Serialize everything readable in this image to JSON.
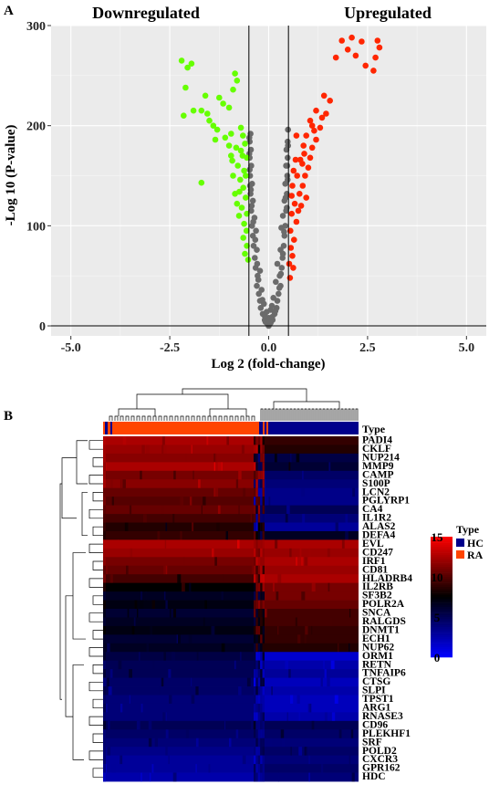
{
  "panel_a": {
    "label": "A"
  },
  "panel_b": {
    "label": "B"
  },
  "chart_data": [
    {
      "type": "scatter",
      "title": "",
      "annotations": [
        "Downregulated",
        "Upregulated"
      ],
      "xlabel": "Log 2 (fold-change)",
      "ylabel": "-Log 10 (P-value)",
      "xlim": [
        -5.5,
        5.5
      ],
      "ylim": [
        -10,
        300
      ],
      "x_ticks": [
        "-5.0",
        "-2.5",
        "0.0",
        "2.5",
        "5.0"
      ],
      "y_ticks": [
        "0",
        "100",
        "200",
        "300"
      ],
      "x_tick_values": [
        -5,
        -2.5,
        0,
        2.5,
        5
      ],
      "y_tick_values": [
        0,
        100,
        200,
        300
      ],
      "threshold_lines_x": [
        -0.5,
        0.5
      ],
      "hline_y": 0,
      "grid": true,
      "colors": {
        "down": "#66ff00",
        "up": "#ff2600",
        "ns": "#6b6b6b",
        "panel_bg": "#ebebeb"
      },
      "series": [
        {
          "key": "down",
          "points": [
            [
              -2.2,
              265
            ],
            [
              -2.05,
              258
            ],
            [
              -1.95,
              262
            ],
            [
              -2.1,
              238
            ],
            [
              -1.6,
              230
            ],
            [
              -1.9,
              215
            ],
            [
              -2.15,
              210
            ],
            [
              -1.7,
              215
            ],
            [
              -1.25,
              228
            ],
            [
              -1.15,
              222
            ],
            [
              -1.0,
              218
            ],
            [
              -0.85,
              252
            ],
            [
              -0.8,
              245
            ],
            [
              -0.9,
              236
            ],
            [
              -1.5,
              205
            ],
            [
              -1.4,
              200
            ],
            [
              -1.3,
              196
            ],
            [
              -1.55,
              212
            ],
            [
              -1.35,
              186
            ],
            [
              -1.1,
              188
            ],
            [
              -0.95,
              192
            ],
            [
              -0.65,
              190
            ],
            [
              -1.0,
              180
            ],
            [
              -0.82,
              178
            ],
            [
              -1.7,
              143
            ],
            [
              -0.92,
              165
            ],
            [
              -0.78,
              160
            ],
            [
              -0.7,
              175
            ],
            [
              -0.62,
              155
            ],
            [
              -0.72,
              146
            ],
            [
              -0.64,
              138
            ],
            [
              -0.85,
              132
            ],
            [
              -0.58,
              128
            ],
            [
              -0.68,
              118
            ],
            [
              -0.55,
              112
            ],
            [
              -0.62,
              102
            ],
            [
              -0.56,
              95
            ],
            [
              -0.64,
              88
            ],
            [
              -0.55,
              80
            ],
            [
              -0.6,
              72
            ],
            [
              -0.52,
              66
            ],
            [
              -0.75,
              110
            ],
            [
              -0.8,
              122
            ],
            [
              -0.9,
              150
            ],
            [
              -0.95,
              170
            ],
            [
              -0.6,
              182
            ],
            [
              -0.7,
              198
            ],
            [
              -0.55,
              168
            ],
            [
              -0.58,
              150
            ],
            [
              -0.66,
              170
            ],
            [
              -0.74,
              134
            ]
          ]
        },
        {
          "key": "up",
          "points": [
            [
              2.1,
              288
            ],
            [
              1.85,
              285
            ],
            [
              2.35,
              284
            ],
            [
              2.75,
              285
            ],
            [
              2.8,
              278
            ],
            [
              2.7,
              268
            ],
            [
              2.65,
              255
            ],
            [
              2.45,
              260
            ],
            [
              2.0,
              276
            ],
            [
              1.7,
              268
            ],
            [
              2.2,
              270
            ],
            [
              1.55,
              225
            ],
            [
              1.45,
              212
            ],
            [
              1.35,
              208
            ],
            [
              1.2,
              215
            ],
            [
              1.3,
              198
            ],
            [
              1.1,
              200
            ],
            [
              1.05,
              205
            ],
            [
              0.95,
              190
            ],
            [
              1.2,
              186
            ],
            [
              1.1,
              178
            ],
            [
              0.9,
              172
            ],
            [
              0.85,
              162
            ],
            [
              0.8,
              166
            ],
            [
              1.0,
              158
            ],
            [
              0.92,
              150
            ],
            [
              0.68,
              166
            ],
            [
              0.72,
              150
            ],
            [
              0.6,
              140
            ],
            [
              0.78,
              132
            ],
            [
              0.66,
              122
            ],
            [
              0.58,
              112
            ],
            [
              0.7,
              104
            ],
            [
              0.55,
              95
            ],
            [
              0.64,
              86
            ],
            [
              0.56,
              78
            ],
            [
              0.6,
              70
            ],
            [
              0.52,
              62
            ],
            [
              0.75,
              115
            ],
            [
              0.86,
              140
            ],
            [
              0.95,
              128
            ],
            [
              1.05,
              168
            ],
            [
              0.63,
              155
            ],
            [
              0.88,
              180
            ],
            [
              0.7,
              190
            ],
            [
              0.58,
              130
            ],
            [
              0.82,
              120
            ],
            [
              0.54,
              48
            ],
            [
              0.62,
              58
            ],
            [
              1.4,
              230
            ],
            [
              1.15,
              195
            ]
          ]
        },
        {
          "key": "ns",
          "points": [
            [
              0.0,
              0
            ],
            [
              -0.05,
              3
            ],
            [
              0.05,
              3
            ],
            [
              -0.1,
              6
            ],
            [
              0.1,
              6
            ],
            [
              0.0,
              8
            ],
            [
              -0.15,
              12
            ],
            [
              0.15,
              12
            ],
            [
              -0.2,
              18
            ],
            [
              0.2,
              18
            ],
            [
              -0.05,
              14
            ],
            [
              0.05,
              16
            ],
            [
              -0.22,
              25
            ],
            [
              0.22,
              25
            ],
            [
              -0.12,
              22
            ],
            [
              0.12,
              28
            ],
            [
              -0.25,
              32
            ],
            [
              0.25,
              32
            ],
            [
              -0.3,
              40
            ],
            [
              0.3,
              40
            ],
            [
              -0.18,
              36
            ],
            [
              0.18,
              44
            ],
            [
              -0.28,
              50
            ],
            [
              0.28,
              50
            ],
            [
              -0.33,
              58
            ],
            [
              0.33,
              58
            ],
            [
              -0.22,
              55
            ],
            [
              0.22,
              62
            ],
            [
              -0.35,
              68
            ],
            [
              0.35,
              68
            ],
            [
              -0.3,
              76
            ],
            [
              0.3,
              76
            ],
            [
              -0.38,
              80
            ],
            [
              0.38,
              80
            ],
            [
              -0.4,
              90
            ],
            [
              0.4,
              90
            ],
            [
              -0.32,
              95
            ],
            [
              0.32,
              98
            ],
            [
              -0.42,
              100
            ],
            [
              0.42,
              100
            ],
            [
              -0.36,
              108
            ],
            [
              0.36,
              110
            ],
            [
              -0.44,
              115
            ],
            [
              0.44,
              115
            ],
            [
              -0.4,
              125
            ],
            [
              0.4,
              125
            ],
            [
              -0.46,
              132
            ],
            [
              0.46,
              132
            ],
            [
              -0.42,
              142
            ],
            [
              0.42,
              142
            ],
            [
              -0.47,
              150
            ],
            [
              0.47,
              150
            ],
            [
              -0.44,
              160
            ],
            [
              0.44,
              160
            ],
            [
              -0.48,
              168
            ],
            [
              0.48,
              168
            ],
            [
              -0.45,
              176
            ],
            [
              0.45,
              176
            ],
            [
              -0.48,
              184
            ],
            [
              0.48,
              184
            ],
            [
              -0.46,
              192
            ],
            [
              -0.1,
              10
            ],
            [
              0.08,
              20
            ],
            [
              -0.26,
              46
            ],
            [
              0.27,
              38
            ],
            [
              -0.34,
              86
            ],
            [
              0.36,
              72
            ],
            [
              -0.43,
              120
            ],
            [
              0.43,
              128
            ],
            [
              -0.47,
              140
            ],
            [
              0.47,
              160
            ],
            [
              -0.49,
              172
            ],
            [
              0.49,
              180
            ],
            [
              -0.02,
              5
            ],
            [
              0.02,
              2
            ],
            [
              -0.08,
              4
            ],
            [
              0.09,
              9
            ],
            [
              -0.16,
              26
            ],
            [
              0.17,
              15
            ],
            [
              -0.29,
              62
            ],
            [
              0.31,
              52
            ],
            [
              -0.39,
              104
            ],
            [
              0.39,
              94
            ],
            [
              -0.45,
              136
            ],
            [
              0.46,
              118
            ],
            [
              -0.48,
              156
            ],
            [
              0.48,
              146
            ],
            [
              -0.49,
              188
            ],
            [
              0.49,
              196
            ]
          ]
        }
      ]
    },
    {
      "type": "heatmap",
      "title": "",
      "annotation_label": "Type",
      "legend_title": "Type",
      "legend_entries": [
        {
          "name": "HC",
          "color": "#00008b"
        },
        {
          "name": "RA",
          "color": "#ff4500"
        }
      ],
      "colorbar": {
        "min": 0,
        "max": 15,
        "ticks": [
          "15",
          "10",
          "5",
          "0"
        ],
        "tick_values": [
          15,
          10,
          5,
          0
        ],
        "colors": [
          "#ff0000",
          "#000000",
          "#0000ff"
        ]
      },
      "rows": [
        "PADI4",
        "CKLF",
        "NUP214",
        "MMP9",
        "CAMP",
        "S100P",
        "LCN2",
        "PGLYRP1",
        "CA4",
        "IL1R2",
        "ALAS2",
        "DEFA4",
        "EVL",
        "CD247",
        "IRF1",
        "CD81",
        "HLADRB4",
        "IL2RB",
        "SF3B2",
        "POLR2A",
        "SNCA",
        "RALGDS",
        "DNMT1",
        "ECH1",
        "NUP62",
        "ORM1",
        "RETN",
        "TNFAIP6",
        "CTSG",
        "SLPI",
        "TPST1",
        "ARG1",
        "RNASE3",
        "CD96",
        "PLEKHF1",
        "SRF",
        "POLD2",
        "CXCR3",
        "GPR162",
        "HDC"
      ],
      "columns": [
        "RA",
        "HC"
      ],
      "values": [
        [
          12.5,
          9.0
        ],
        [
          12.0,
          8.5
        ],
        [
          11.5,
          5.5
        ],
        [
          12.5,
          6.0
        ],
        [
          11.0,
          4.5
        ],
        [
          11.5,
          4.0
        ],
        [
          10.5,
          3.5
        ],
        [
          10.0,
          3.5
        ],
        [
          10.5,
          5.0
        ],
        [
          9.5,
          4.0
        ],
        [
          8.5,
          3.0
        ],
        [
          9.0,
          6.5
        ],
        [
          12.5,
          12.5
        ],
        [
          12.0,
          12.0
        ],
        [
          11.0,
          12.5
        ],
        [
          10.5,
          12.0
        ],
        [
          9.5,
          12.5
        ],
        [
          7.5,
          11.0
        ],
        [
          6.5,
          11.0
        ],
        [
          7.0,
          10.5
        ],
        [
          6.0,
          9.5
        ],
        [
          6.5,
          9.5
        ],
        [
          7.0,
          9.0
        ],
        [
          6.0,
          9.0
        ],
        [
          6.5,
          8.5
        ],
        [
          5.5,
          1.5
        ],
        [
          5.0,
          2.5
        ],
        [
          5.0,
          3.0
        ],
        [
          4.5,
          2.0
        ],
        [
          4.5,
          2.5
        ],
        [
          4.0,
          2.0
        ],
        [
          4.0,
          2.0
        ],
        [
          4.0,
          2.5
        ],
        [
          5.0,
          5.0
        ],
        [
          4.5,
          4.5
        ],
        [
          4.0,
          4.0
        ],
        [
          3.5,
          4.5
        ],
        [
          3.0,
          4.0
        ],
        [
          3.0,
          4.5
        ],
        [
          2.5,
          4.0
        ]
      ]
    }
  ]
}
